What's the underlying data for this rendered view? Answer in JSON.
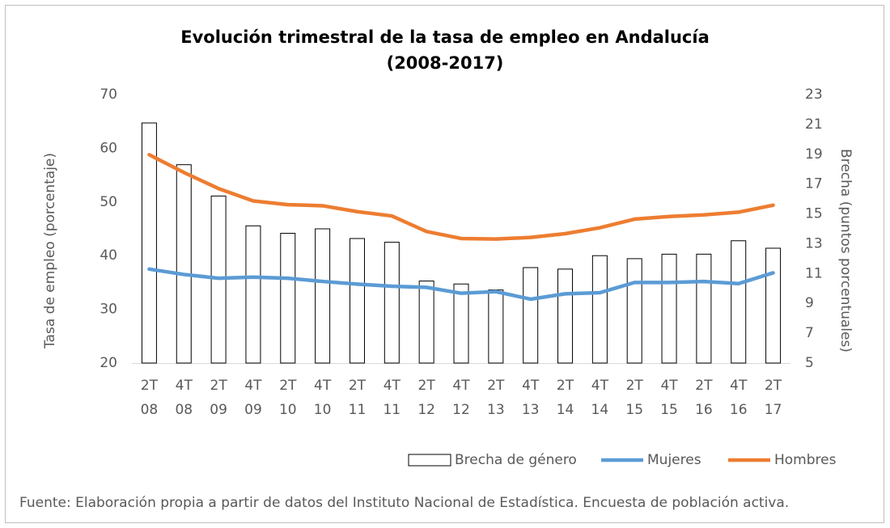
{
  "chart_data": {
    "type": "bar-line",
    "title": [
      "Evolución trimestral de la tasa de empleo en Andalucía",
      "(2008-2017)"
    ],
    "y_label": "Tasa de empleo (porcentaje)",
    "y2_label": "Brecha (puntos porcentuales)",
    "source": "Fuente: Elaboración propia a partir de datos del Instituto Nacional de Estadística. Encuesta de población activa.",
    "categories": [
      [
        "2T",
        "08"
      ],
      [
        "4T",
        "08"
      ],
      [
        "2T",
        "09"
      ],
      [
        "4T",
        "09"
      ],
      [
        "2T",
        "10"
      ],
      [
        "4T",
        "10"
      ],
      [
        "2T",
        "11"
      ],
      [
        "4T",
        "11"
      ],
      [
        "2T",
        "12"
      ],
      [
        "4T",
        "12"
      ],
      [
        "2T",
        "13"
      ],
      [
        "4T",
        "13"
      ],
      [
        "2T",
        "14"
      ],
      [
        "4T",
        "14"
      ],
      [
        "2T",
        "15"
      ],
      [
        "4T",
        "15"
      ],
      [
        "2T",
        "16"
      ],
      [
        "4T",
        "16"
      ],
      [
        "2T",
        "17"
      ]
    ],
    "series": [
      {
        "name": "Brecha de género",
        "type": "bar",
        "axis": "y2",
        "color": "#ffffff",
        "values": [
          21.1,
          18.3,
          16.2,
          14.2,
          13.7,
          14.0,
          13.35,
          13.1,
          10.5,
          10.3,
          9.9,
          11.4,
          11.3,
          12.2,
          12.0,
          12.3,
          12.3,
          13.2,
          12.7
        ]
      },
      {
        "name": "Mujeres",
        "type": "line",
        "color": "#5b9bd5",
        "values": [
          37.5,
          36.5,
          35.8,
          36.0,
          35.8,
          35.2,
          34.7,
          34.3,
          34.1,
          33.0,
          33.3,
          31.9,
          32.9,
          33.1,
          35.0,
          35.0,
          35.2,
          34.8,
          36.8
        ]
      },
      {
        "name": "Hombres",
        "type": "line",
        "color": "#ed7d31",
        "values": [
          58.8,
          55.5,
          52.5,
          50.2,
          49.5,
          49.3,
          48.2,
          47.4,
          44.5,
          43.2,
          43.1,
          43.4,
          44.1,
          45.2,
          46.8,
          47.3,
          47.6,
          48.1,
          49.4
        ]
      }
    ],
    "ylim": [
      20,
      70
    ],
    "yticks": [
      20,
      30,
      40,
      50,
      60,
      70
    ],
    "y2lim": [
      5,
      23
    ],
    "y2ticks": [
      5,
      7,
      9,
      11,
      13,
      15,
      17,
      19,
      21,
      23
    ]
  }
}
